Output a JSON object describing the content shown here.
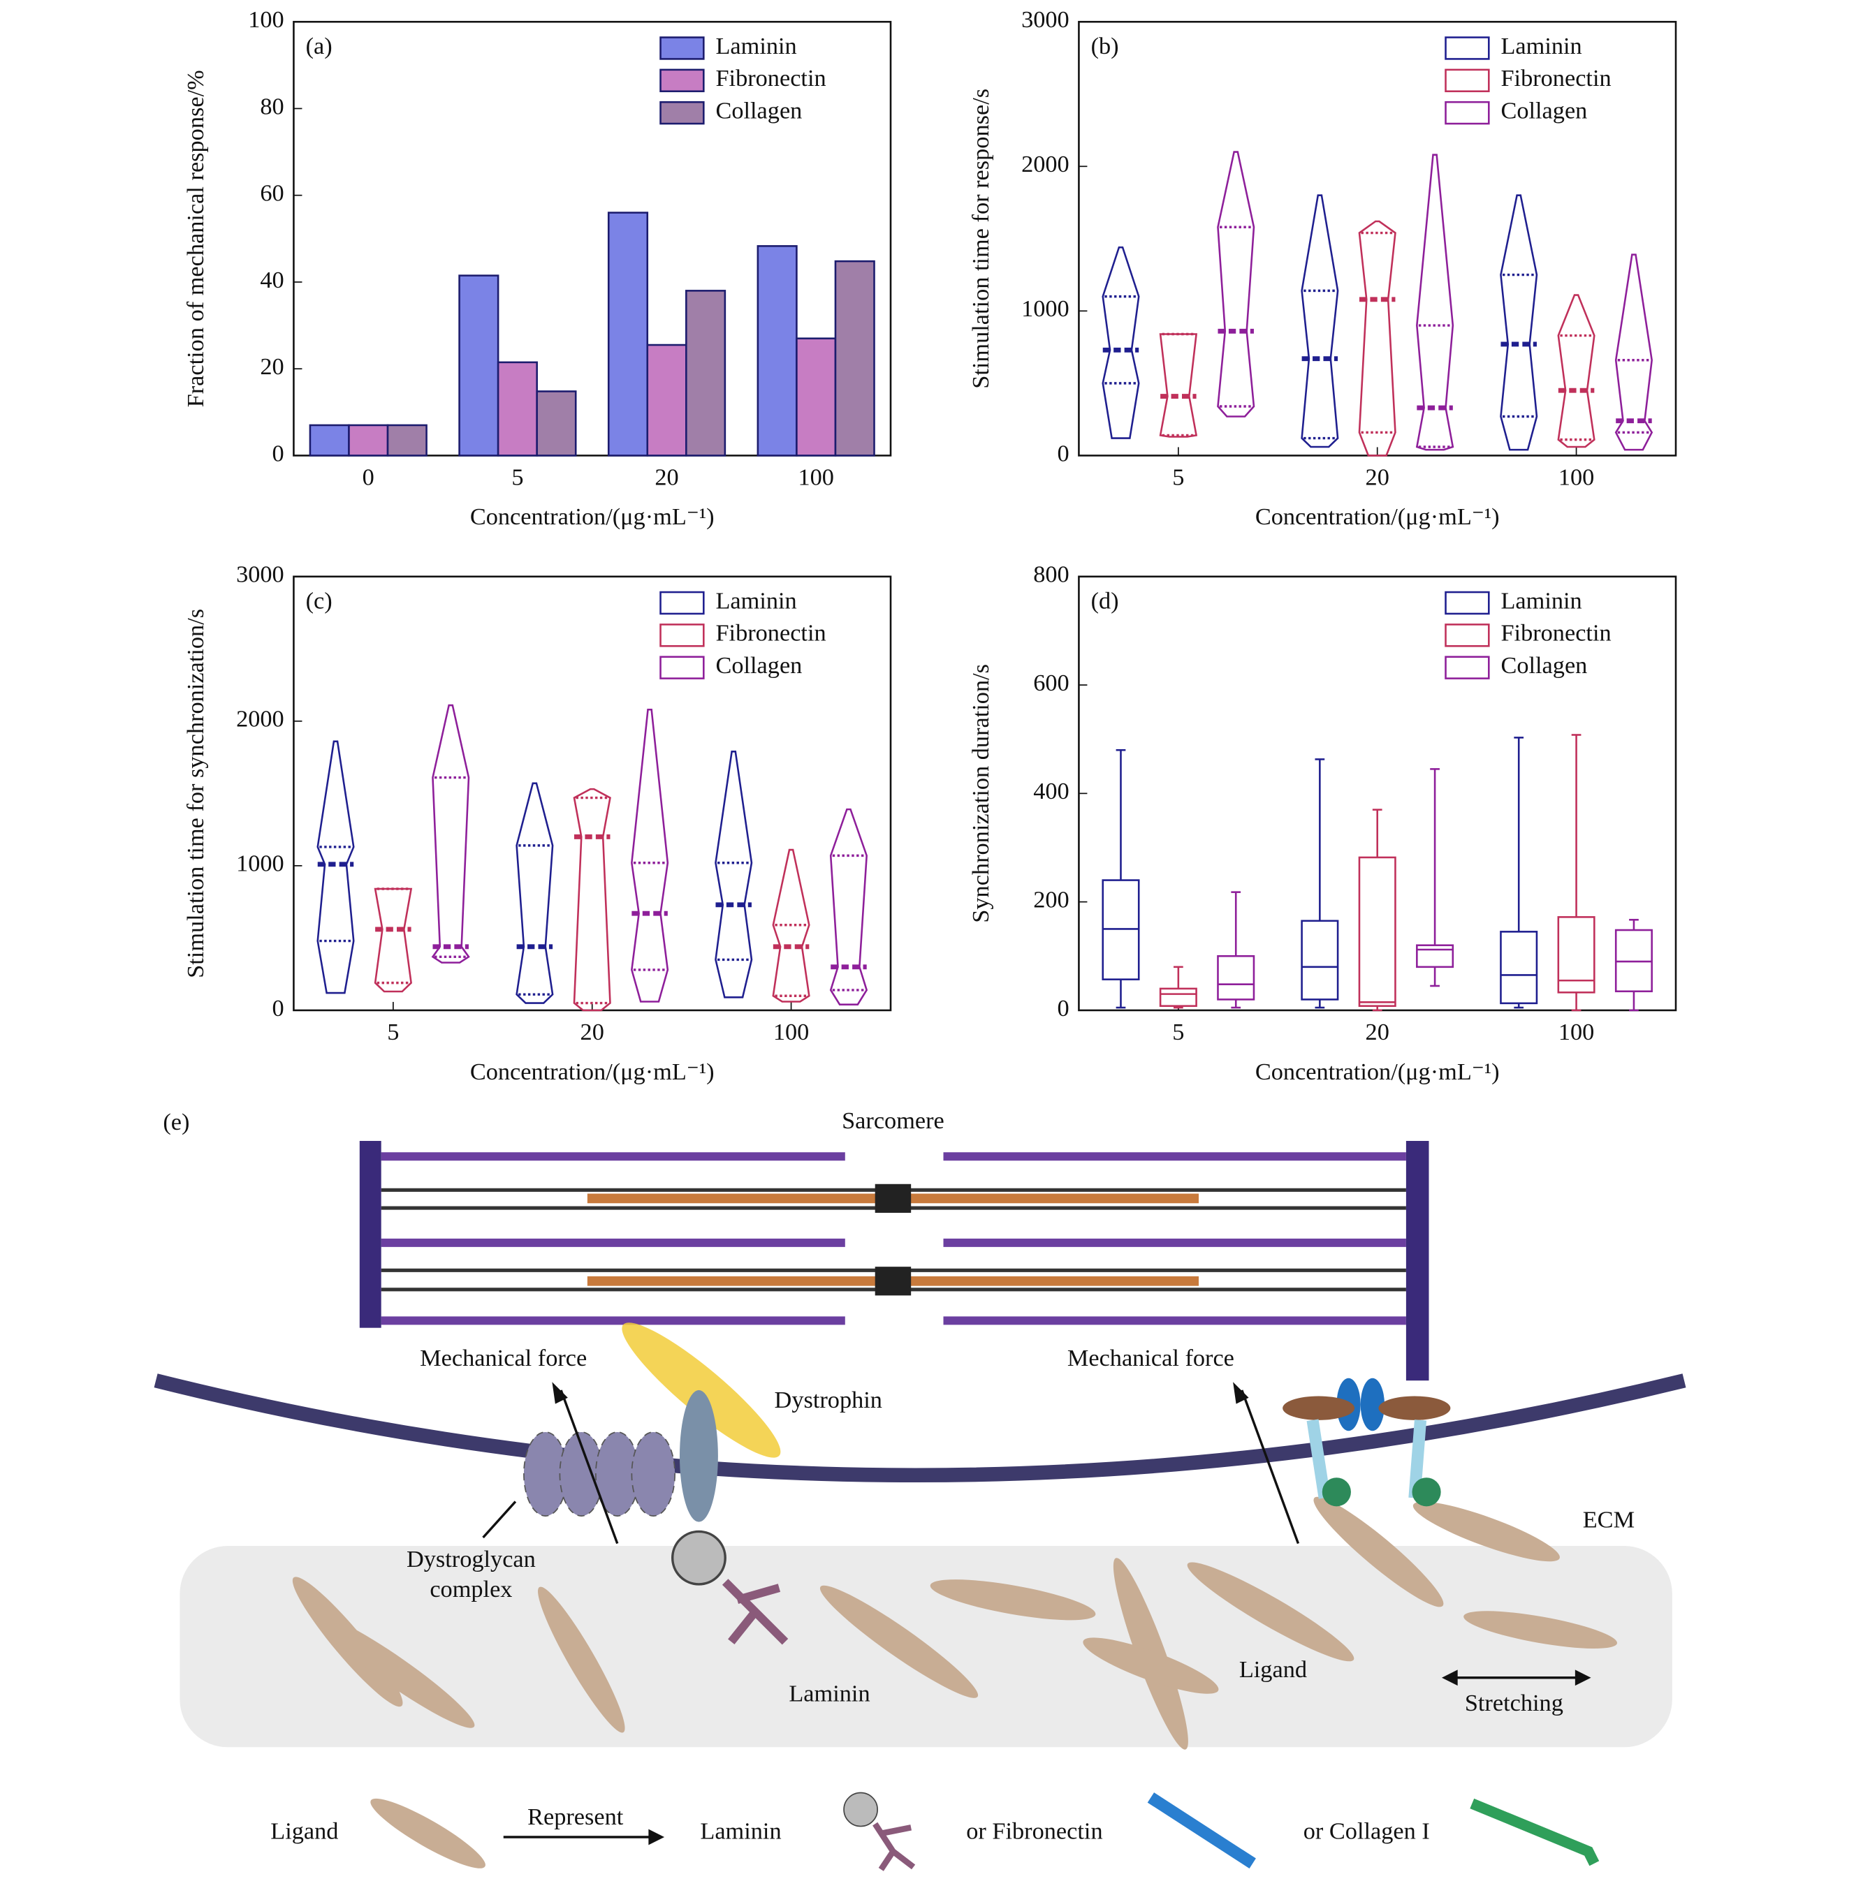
{
  "chart_data": [
    {
      "type": "bar",
      "label": "(a)",
      "ylabel": "Fraction of mechanical response/%",
      "xlabel": "Concentration/(μg·mL⁻¹)",
      "categories": [
        "0",
        "5",
        "20",
        "100"
      ],
      "ylim": [
        0,
        100
      ],
      "yticks": [
        0,
        20,
        40,
        60,
        80,
        100
      ],
      "legend": "upper right",
      "edgecolor": "#1c1c6e",
      "series": [
        {
          "name": "Laminin",
          "color": "#7b83e6",
          "values": [
            7,
            41.5,
            56,
            48.3
          ]
        },
        {
          "name": "Fibronectin",
          "color": "#c77dc3",
          "values": [
            7,
            21.5,
            25.5,
            27
          ]
        },
        {
          "name": "Collagen",
          "color": "#a07fa8",
          "values": [
            7,
            14.8,
            38,
            44.8
          ]
        }
      ]
    },
    {
      "type": "violin",
      "label": "(b)",
      "ylabel": "Stimulation time for response/s",
      "xlabel": "Concentration/(μg·mL⁻¹)",
      "categories": [
        "5",
        "20",
        "100"
      ],
      "ylim": [
        0,
        3000
      ],
      "yticks": [
        0,
        1000,
        2000,
        3000
      ],
      "legend": "upper right",
      "series": [
        {
          "name": "Laminin",
          "color": "#1f1f8f",
          "min": [
            120,
            60,
            40
          ],
          "q1": [
            500,
            120,
            270
          ],
          "median": [
            730,
            670,
            770
          ],
          "q3": [
            1100,
            1140,
            1250
          ],
          "max": [
            1440,
            1800,
            1800
          ]
        },
        {
          "name": "Fibronectin",
          "color": "#c0305a",
          "min": [
            130,
            0,
            60
          ],
          "q1": [
            140,
            160,
            110
          ],
          "median": [
            410,
            1080,
            450
          ],
          "q3": [
            840,
            1540,
            830
          ],
          "max": [
            840,
            1620,
            1110
          ]
        },
        {
          "name": "Collagen",
          "color": "#8e1f9a",
          "min": [
            270,
            40,
            40
          ],
          "q1": [
            340,
            60,
            160
          ],
          "median": [
            860,
            330,
            240
          ],
          "q3": [
            1580,
            900,
            660
          ],
          "max": [
            2100,
            2080,
            1390
          ]
        }
      ]
    },
    {
      "type": "violin",
      "label": "(c)",
      "ylabel": "Stimulation time for synchronization/s",
      "xlabel": "Concentration/(μg·mL⁻¹)",
      "categories": [
        "5",
        "20",
        "100"
      ],
      "ylim": [
        0,
        3000
      ],
      "yticks": [
        0,
        1000,
        2000,
        3000
      ],
      "legend": "upper right",
      "series": [
        {
          "name": "Laminin",
          "color": "#1f1f8f",
          "min": [
            120,
            50,
            90
          ],
          "q1": [
            480,
            110,
            350
          ],
          "median": [
            1010,
            440,
            730
          ],
          "q3": [
            1130,
            1140,
            1020
          ],
          "max": [
            1860,
            1570,
            1790
          ]
        },
        {
          "name": "Fibronectin",
          "color": "#c0305a",
          "min": [
            130,
            0,
            60
          ],
          "q1": [
            190,
            50,
            100
          ],
          "median": [
            560,
            1200,
            440
          ],
          "q3": [
            840,
            1470,
            590
          ],
          "max": [
            840,
            1530,
            1110
          ]
        },
        {
          "name": "Collagen",
          "color": "#8e1f9a",
          "min": [
            330,
            60,
            40
          ],
          "q1": [
            370,
            280,
            140
          ],
          "median": [
            440,
            670,
            300
          ],
          "q3": [
            1610,
            1020,
            1070
          ],
          "max": [
            2110,
            2080,
            1390
          ]
        }
      ]
    },
    {
      "type": "box",
      "label": "(d)",
      "ylabel": "Synchronization duration/s",
      "xlabel": "Concentration/(μg·mL⁻¹)",
      "categories": [
        "5",
        "20",
        "100"
      ],
      "ylim": [
        0,
        800
      ],
      "yticks": [
        0,
        200,
        400,
        600,
        800
      ],
      "legend": "upper right",
      "series": [
        {
          "name": "Laminin",
          "color": "#1f1f8f",
          "min": [
            5,
            5,
            5
          ],
          "q1": [
            57,
            20,
            13
          ],
          "median": [
            150,
            80,
            65
          ],
          "q3": [
            240,
            165,
            145
          ],
          "max": [
            480,
            463,
            503
          ]
        },
        {
          "name": "Fibronectin",
          "color": "#c0305a",
          "min": [
            5,
            0,
            0
          ],
          "q1": [
            8,
            8,
            33
          ],
          "median": [
            30,
            15,
            55
          ],
          "q3": [
            40,
            282,
            172
          ],
          "max": [
            80,
            370,
            508
          ]
        },
        {
          "name": "Collagen",
          "color": "#8e1f9a",
          "min": [
            5,
            45,
            0
          ],
          "q1": [
            20,
            80,
            35
          ],
          "median": [
            48,
            112,
            90
          ],
          "q3": [
            100,
            120,
            148
          ],
          "max": [
            218,
            445,
            167
          ]
        }
      ]
    }
  ],
  "diagram": {
    "label": "(e)",
    "sarcomere": "Sarcomere",
    "force_left": "Mechanical force",
    "force_right": "Mechanical force",
    "dystrophin": "Dystrophin",
    "dystroglycan": [
      "Dystroglycan",
      "complex"
    ],
    "ecm": "ECM",
    "laminin": "Laminin",
    "ligand": "Ligand",
    "stretching": "Stretching",
    "key": {
      "ligand": "Ligand",
      "represent": "Represent",
      "laminin": "Laminin",
      "fibronectin": "or Fibronectin",
      "collagen": "or Collagen I"
    }
  }
}
